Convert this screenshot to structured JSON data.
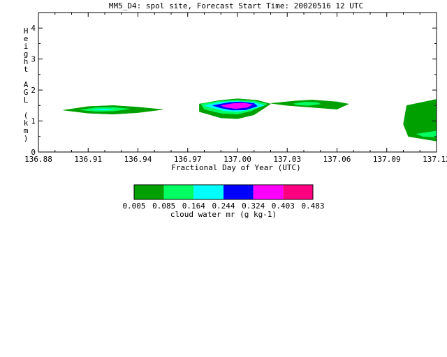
{
  "chart_data": {
    "type": "heatmap",
    "title": "MM5_D4: spol site,  Forecast Start Time: 20020516 12 UTC",
    "xlabel": "Fractional Day of Year (UTC)",
    "ylabel": "Height AGL (km)",
    "xlim": [
      136.88,
      137.12
    ],
    "ylim": [
      0,
      4.5
    ],
    "x_ticks": [
      "136.88",
      "136.91",
      "136.94",
      "136.97",
      "137.00",
      "137.03",
      "137.06",
      "137.09",
      "137.12"
    ],
    "y_ticks": [
      "0",
      "1",
      "2",
      "3",
      "4"
    ],
    "colorbar": {
      "label": "cloud water mr (g kg-1)",
      "levels": [
        "0.005",
        "0.085",
        "0.164",
        "0.244",
        "0.324",
        "0.403",
        "0.483"
      ],
      "colors": [
        "#00a000",
        "#00ff60",
        "#00ffff",
        "#0000ff",
        "#ff00ff",
        "#ff0080"
      ]
    },
    "features": [
      {
        "name": "cloud-left",
        "level": 0,
        "points": [
          [
            136.895,
            1.35
          ],
          [
            136.91,
            1.47
          ],
          [
            136.925,
            1.5
          ],
          [
            136.94,
            1.45
          ],
          [
            136.955,
            1.37
          ],
          [
            136.94,
            1.27
          ],
          [
            136.925,
            1.22
          ],
          [
            136.91,
            1.25
          ]
        ]
      },
      {
        "name": "cloud-left-core",
        "level": 1,
        "points": [
          [
            136.905,
            1.36
          ],
          [
            136.915,
            1.43
          ],
          [
            136.925,
            1.44
          ],
          [
            136.935,
            1.39
          ],
          [
            136.925,
            1.32
          ],
          [
            136.915,
            1.31
          ]
        ]
      },
      {
        "name": "cloud-left-inner",
        "level": 2,
        "points": [
          [
            136.913,
            1.37
          ],
          [
            136.921,
            1.39
          ],
          [
            136.925,
            1.37
          ],
          [
            136.919,
            1.35
          ]
        ]
      },
      {
        "name": "cloud-center",
        "level": 0,
        "points": [
          [
            136.977,
            1.55
          ],
          [
            136.99,
            1.67
          ],
          [
            137.0,
            1.72
          ],
          [
            137.012,
            1.67
          ],
          [
            137.02,
            1.55
          ],
          [
            137.01,
            1.2
          ],
          [
            137.0,
            1.07
          ],
          [
            136.99,
            1.1
          ],
          [
            136.977,
            1.3
          ]
        ]
      },
      {
        "name": "cloud-center-l1",
        "level": 1,
        "points": [
          [
            136.978,
            1.55
          ],
          [
            136.99,
            1.65
          ],
          [
            137.0,
            1.68
          ],
          [
            137.01,
            1.65
          ],
          [
            137.018,
            1.55
          ],
          [
            137.008,
            1.32
          ],
          [
            137.0,
            1.22
          ],
          [
            136.99,
            1.25
          ],
          [
            136.98,
            1.38
          ]
        ]
      },
      {
        "name": "cloud-center-l2",
        "level": 2,
        "points": [
          [
            136.98,
            1.5
          ],
          [
            136.99,
            1.61
          ],
          [
            137.0,
            1.64
          ],
          [
            137.01,
            1.6
          ],
          [
            137.016,
            1.5
          ],
          [
            137.006,
            1.35
          ],
          [
            137.0,
            1.3
          ],
          [
            136.992,
            1.33
          ],
          [
            136.985,
            1.42
          ]
        ]
      },
      {
        "name": "cloud-center-l3",
        "level": 3,
        "points": [
          [
            136.985,
            1.5
          ],
          [
            136.995,
            1.6
          ],
          [
            137.002,
            1.62
          ],
          [
            137.01,
            1.57
          ],
          [
            137.012,
            1.48
          ],
          [
            137.005,
            1.36
          ],
          [
            136.997,
            1.35
          ],
          [
            136.99,
            1.42
          ]
        ]
      },
      {
        "name": "cloud-center-l4",
        "level": 4,
        "points": [
          [
            136.99,
            1.5
          ],
          [
            136.998,
            1.57
          ],
          [
            137.004,
            1.58
          ],
          [
            137.009,
            1.53
          ],
          [
            137.006,
            1.44
          ],
          [
            136.999,
            1.4
          ],
          [
            136.993,
            1.44
          ]
        ]
      },
      {
        "name": "cloud-right",
        "level": 0,
        "points": [
          [
            137.02,
            1.57
          ],
          [
            137.035,
            1.65
          ],
          [
            137.045,
            1.68
          ],
          [
            137.06,
            1.62
          ],
          [
            137.067,
            1.55
          ],
          [
            137.06,
            1.38
          ],
          [
            137.045,
            1.44
          ],
          [
            137.03,
            1.5
          ]
        ]
      },
      {
        "name": "cloud-right-core",
        "level": 1,
        "points": [
          [
            137.034,
            1.56
          ],
          [
            137.04,
            1.61
          ],
          [
            137.048,
            1.6
          ],
          [
            137.05,
            1.55
          ],
          [
            137.043,
            1.5
          ],
          [
            137.036,
            1.52
          ]
        ]
      },
      {
        "name": "cloud-edge",
        "level": 0,
        "points": [
          [
            137.102,
            1.5
          ],
          [
            137.12,
            1.7
          ],
          [
            137.12,
            0.35
          ],
          [
            137.103,
            0.5
          ],
          [
            137.1,
            0.9
          ]
        ]
      },
      {
        "name": "cloud-edge-core",
        "level": 1,
        "points": [
          [
            137.108,
            0.58
          ],
          [
            137.12,
            0.68
          ],
          [
            137.12,
            0.48
          ],
          [
            137.112,
            0.5
          ]
        ]
      }
    ]
  }
}
